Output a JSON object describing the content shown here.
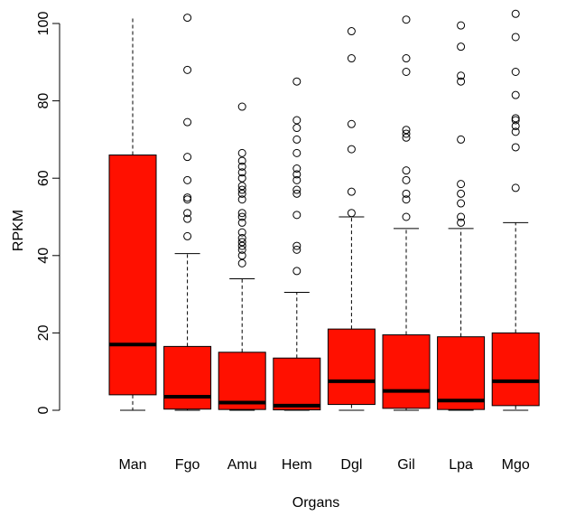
{
  "chart_data": {
    "type": "box",
    "xlabel": "Organs",
    "ylabel": "RPKM",
    "ylim": [
      0,
      102
    ],
    "yticks": [
      0,
      20,
      40,
      60,
      80,
      100
    ],
    "box_color": "#ff1000",
    "grid": false,
    "categories": [
      "Man",
      "Fgo",
      "Amu",
      "Hem",
      "Dgl",
      "Gil",
      "Lpa",
      "Mgo"
    ],
    "boxes": [
      {
        "name": "Man",
        "whisker_low": 0,
        "q1": 4,
        "median": 17,
        "q3": 66,
        "whisker_high": 102,
        "outliers": []
      },
      {
        "name": "Fgo",
        "whisker_low": 0,
        "q1": 0.3,
        "median": 3.5,
        "q3": 16.5,
        "whisker_high": 40.5,
        "outliers": [
          45,
          49.5,
          51,
          54.5,
          55,
          59.5,
          65.5,
          74.5,
          88,
          101.5
        ]
      },
      {
        "name": "Amu",
        "whisker_low": 0,
        "q1": 0.2,
        "median": 2,
        "q3": 15,
        "whisker_high": 34,
        "outliers": [
          38,
          40,
          41.5,
          42.5,
          43.5,
          44.5,
          46,
          48.5,
          50,
          51,
          54.5,
          56,
          57,
          58,
          60,
          61.5,
          63,
          64.5,
          66.5,
          78.5
        ]
      },
      {
        "name": "Hem",
        "whisker_low": 0,
        "q1": 0.1,
        "median": 1.2,
        "q3": 13.5,
        "whisker_high": 30.5,
        "outliers": [
          36,
          41.5,
          42.5,
          50.5,
          56,
          57,
          59.5,
          61,
          62.5,
          66.5,
          70,
          73,
          75,
          85
        ]
      },
      {
        "name": "Dgl",
        "whisker_low": 0,
        "q1": 1.5,
        "median": 7.5,
        "q3": 21,
        "whisker_high": 50,
        "outliers": [
          51,
          56.5,
          67.5,
          74,
          91,
          98
        ]
      },
      {
        "name": "Gil",
        "whisker_low": 0,
        "q1": 0.5,
        "median": 5,
        "q3": 19.5,
        "whisker_high": 47,
        "outliers": [
          50,
          54.5,
          56,
          59.5,
          62,
          70.5,
          71.5,
          72.5,
          87.5,
          91,
          101
        ]
      },
      {
        "name": "Lpa",
        "whisker_low": 0,
        "q1": 0.2,
        "median": 2.5,
        "q3": 19,
        "whisker_high": 47,
        "outliers": [
          48.5,
          50,
          53.5,
          56,
          58.5,
          70,
          85,
          86.5,
          94,
          99.5
        ]
      },
      {
        "name": "Mgo",
        "whisker_low": 0,
        "q1": 1.2,
        "median": 7.5,
        "q3": 20,
        "whisker_high": 48.5,
        "outliers": [
          57.5,
          68,
          72,
          73.5,
          75,
          75.5,
          81.5,
          87.5,
          96.5,
          102.5
        ]
      }
    ]
  }
}
